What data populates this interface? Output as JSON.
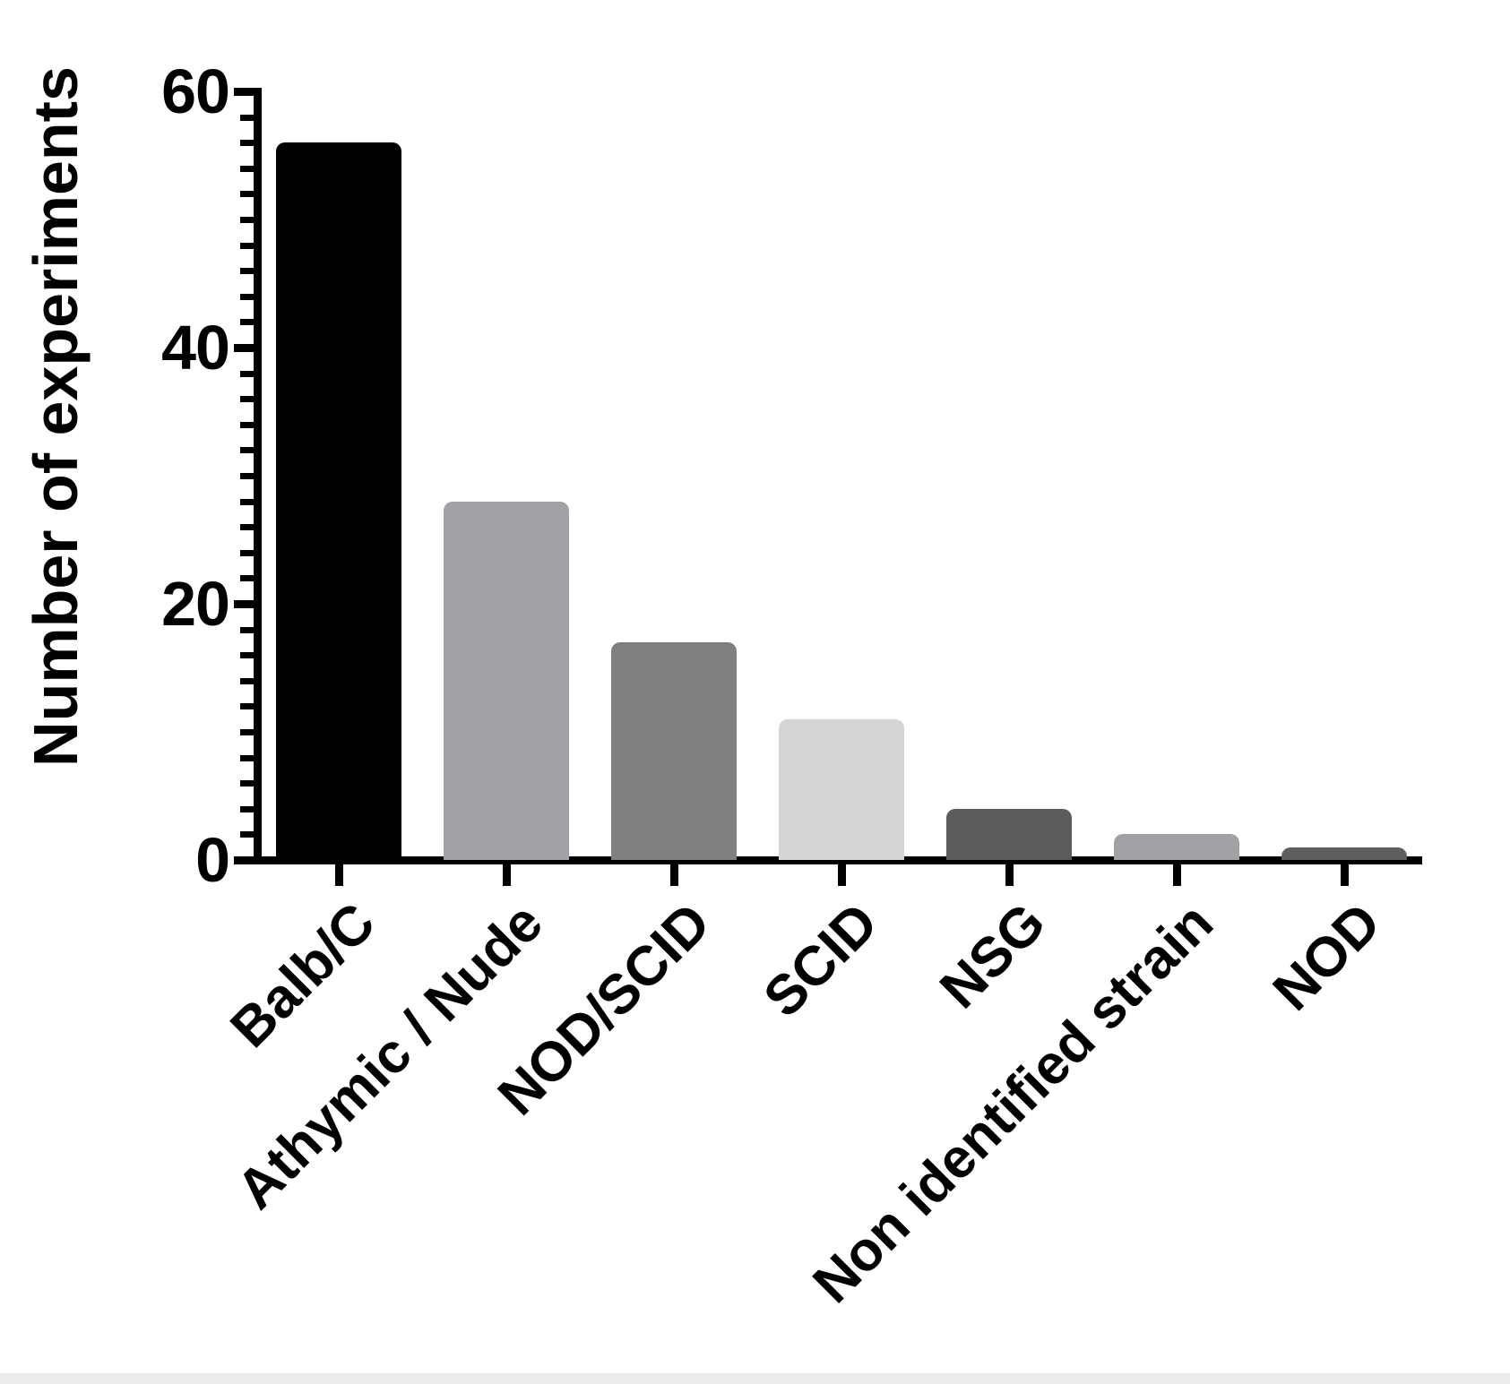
{
  "chart_data": {
    "type": "bar",
    "title": "",
    "ylabel": "Number of experiments",
    "xlabel": "",
    "categories": [
      "Balb/C",
      "Athymic / Nude",
      "NOD/SCID",
      "SCID",
      "NSG",
      "Non identified strain",
      "NOD"
    ],
    "values": [
      56,
      28,
      17,
      11,
      4,
      2,
      1
    ],
    "bar_colors": [
      "#000000",
      "#a2a2a6",
      "#7f7f7f",
      "#d4d4d4",
      "#5c5c5c",
      "#a1a1a5",
      "#5f5f5f"
    ],
    "ylim": [
      0,
      60
    ],
    "yticks": [
      0,
      20,
      40,
      60
    ],
    "ytick_labels": [
      "0",
      "20",
      "40",
      "60"
    ],
    "y_minor_step": 2,
    "x_label_rotation_deg": 45,
    "grid": false,
    "legend": false,
    "axis_color": "#000000",
    "text_color": "#000000",
    "background_color": "#ffffff"
  }
}
